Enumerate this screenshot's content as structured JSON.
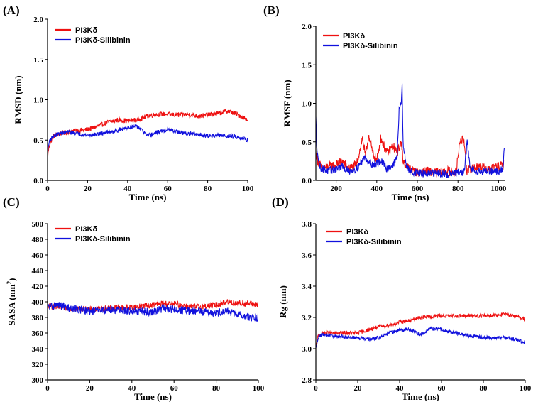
{
  "colors": {
    "red": "#ee1111",
    "blue": "#1111dd"
  },
  "chart_data": [
    {
      "id": "A",
      "panel_label": "(A)",
      "type": "line",
      "xlabel": "Time (ns)",
      "ylabel": "RMSD (nm)",
      "xlim": [
        0,
        100
      ],
      "ylim": [
        0,
        2.0
      ],
      "xticks": [
        0,
        20,
        40,
        60,
        80,
        100
      ],
      "xtick_labels": [
        "0",
        "20",
        "40",
        "60",
        "80",
        "100"
      ],
      "yticks": [
        0,
        0.5,
        1.0,
        1.5,
        2.0
      ],
      "ytick_labels": [
        "0.0",
        "0.5",
        "1.0",
        "1.5",
        "2.0"
      ],
      "legend": [
        "PI3Kδ",
        "PI3Kδ-Silibinin"
      ],
      "series": [
        {
          "name": "PI3Kδ",
          "color": "#ee1111",
          "noise": 0.03,
          "x": [
            0,
            1,
            3,
            6,
            10,
            15,
            20,
            25,
            30,
            35,
            40,
            45,
            50,
            55,
            60,
            65,
            70,
            75,
            80,
            85,
            90,
            95,
            100
          ],
          "values": [
            0.3,
            0.45,
            0.55,
            0.58,
            0.6,
            0.62,
            0.63,
            0.67,
            0.72,
            0.75,
            0.74,
            0.75,
            0.8,
            0.82,
            0.82,
            0.81,
            0.82,
            0.8,
            0.81,
            0.83,
            0.86,
            0.82,
            0.75
          ]
        },
        {
          "name": "PI3Kδ-Silibinin",
          "color": "#1111dd",
          "noise": 0.025,
          "x": [
            0,
            1,
            3,
            6,
            10,
            15,
            20,
            25,
            30,
            35,
            40,
            45,
            50,
            55,
            60,
            65,
            70,
            75,
            80,
            85,
            90,
            95,
            100
          ],
          "values": [
            0.35,
            0.5,
            0.55,
            0.58,
            0.6,
            0.58,
            0.56,
            0.57,
            0.6,
            0.62,
            0.66,
            0.67,
            0.55,
            0.6,
            0.63,
            0.6,
            0.58,
            0.57,
            0.55,
            0.56,
            0.55,
            0.54,
            0.5
          ]
        }
      ]
    },
    {
      "id": "B",
      "panel_label": "(B)",
      "type": "line",
      "xlabel": "Time (ns)",
      "ylabel": "RMSF (nm)",
      "xlim": [
        100,
        1030
      ],
      "ylim": [
        0,
        2.0
      ],
      "xticks": [
        200,
        400,
        600,
        800,
        1000
      ],
      "xtick_labels": [
        "200",
        "400",
        "600",
        "800",
        "1000"
      ],
      "yticks": [
        0,
        0.5,
        1.0,
        1.5,
        2.0
      ],
      "ytick_labels": [
        "0.0",
        "0.5",
        "1.0",
        "1.5",
        "2.0"
      ],
      "legend": [
        "PI3Kδ",
        "PI3Kδ-Silibinin"
      ],
      "series": [
        {
          "name": "PI3Kδ",
          "color": "#ee1111",
          "noise": 0.06,
          "x": [
            100,
            110,
            130,
            160,
            200,
            230,
            260,
            300,
            330,
            345,
            360,
            380,
            400,
            420,
            450,
            480,
            500,
            520,
            530,
            545,
            560,
            600,
            650,
            700,
            750,
            790,
            810,
            830,
            845,
            860,
            900,
            950,
            1000,
            1025
          ],
          "values": [
            0.35,
            0.25,
            0.15,
            0.18,
            0.2,
            0.25,
            0.15,
            0.2,
            0.55,
            0.3,
            0.6,
            0.35,
            0.25,
            0.55,
            0.35,
            0.45,
            0.35,
            0.5,
            0.25,
            0.2,
            0.15,
            0.1,
            0.12,
            0.1,
            0.12,
            0.1,
            0.52,
            0.52,
            0.1,
            0.15,
            0.18,
            0.15,
            0.18,
            0.2
          ]
        },
        {
          "name": "PI3Kδ-Silibinin",
          "color": "#1111dd",
          "noise": 0.05,
          "x": [
            100,
            105,
            115,
            130,
            160,
            200,
            230,
            260,
            300,
            340,
            380,
            420,
            450,
            480,
            500,
            510,
            520,
            525,
            530,
            545,
            560,
            600,
            650,
            700,
            750,
            800,
            830,
            845,
            860,
            900,
            950,
            1000,
            1020,
            1028
          ],
          "values": [
            0.8,
            0.45,
            0.2,
            0.15,
            0.12,
            0.15,
            0.18,
            0.12,
            0.15,
            0.3,
            0.2,
            0.25,
            0.15,
            0.2,
            0.3,
            0.9,
            1.0,
            1.22,
            0.45,
            0.2,
            0.12,
            0.1,
            0.08,
            0.1,
            0.08,
            0.1,
            0.1,
            0.5,
            0.15,
            0.12,
            0.12,
            0.12,
            0.15,
            0.38
          ]
        }
      ]
    },
    {
      "id": "C",
      "panel_label": "(C)",
      "type": "line",
      "xlabel": "Time (ns)",
      "ylabel": "SASA (nm²)",
      "xlim": [
        0,
        100
      ],
      "ylim": [
        300,
        500
      ],
      "xticks": [
        0,
        20,
        40,
        60,
        80,
        100
      ],
      "xtick_labels": [
        "0",
        "20",
        "40",
        "60",
        "80",
        "100"
      ],
      "yticks": [
        300,
        320,
        340,
        360,
        380,
        400,
        420,
        440,
        460,
        480,
        500
      ],
      "ytick_labels": [
        "300",
        "320",
        "340",
        "360",
        "380",
        "400",
        "420",
        "440",
        "460",
        "480",
        "500"
      ],
      "legend": [
        "PI3Kδ",
        "PI3Kδ-Silibinin"
      ],
      "series": [
        {
          "name": "PI3Kδ",
          "color": "#ee1111",
          "noise": 4,
          "x": [
            0,
            5,
            10,
            20,
            30,
            40,
            50,
            55,
            60,
            70,
            80,
            85,
            90,
            95,
            100
          ],
          "values": [
            395,
            393,
            392,
            390,
            392,
            393,
            396,
            398,
            397,
            393,
            396,
            400,
            398,
            398,
            396
          ]
        },
        {
          "name": "PI3Kδ-Silibinin",
          "color": "#1111dd",
          "noise": 5,
          "x": [
            0,
            5,
            10,
            20,
            30,
            40,
            50,
            55,
            60,
            70,
            80,
            85,
            90,
            95,
            100
          ],
          "values": [
            393,
            396,
            392,
            388,
            390,
            388,
            387,
            392,
            390,
            388,
            386,
            388,
            384,
            380,
            380
          ]
        }
      ]
    },
    {
      "id": "D",
      "panel_label": "(D)",
      "type": "line",
      "xlabel": "Time (ns)",
      "ylabel": "Rg (nm)",
      "xlim": [
        0,
        100
      ],
      "ylim": [
        2.8,
        3.8
      ],
      "xticks": [
        0,
        20,
        40,
        60,
        80,
        100
      ],
      "xtick_labels": [
        "0",
        "20",
        "40",
        "60",
        "80",
        "100"
      ],
      "yticks": [
        2.8,
        3.0,
        3.2,
        3.4,
        3.6,
        3.8
      ],
      "ytick_labels": [
        "2.8",
        "3.0",
        "3.2",
        "3.4",
        "3.6",
        "3.8"
      ],
      "legend": [
        "PI3Kδ",
        "PI3Kδ-Silibinin"
      ],
      "series": [
        {
          "name": "PI3Kδ",
          "color": "#ee1111",
          "noise": 0.012,
          "x": [
            0,
            1,
            3,
            10,
            20,
            25,
            30,
            35,
            40,
            45,
            50,
            60,
            70,
            80,
            90,
            95,
            100
          ],
          "values": [
            3.0,
            3.08,
            3.1,
            3.1,
            3.1,
            3.12,
            3.14,
            3.15,
            3.17,
            3.18,
            3.2,
            3.21,
            3.21,
            3.21,
            3.22,
            3.21,
            3.19
          ]
        },
        {
          "name": "PI3Kδ-Silibinin",
          "color": "#1111dd",
          "noise": 0.012,
          "x": [
            0,
            1,
            3,
            10,
            20,
            25,
            30,
            35,
            40,
            45,
            50,
            55,
            60,
            70,
            80,
            90,
            95,
            100
          ],
          "values": [
            3.0,
            3.07,
            3.09,
            3.08,
            3.07,
            3.06,
            3.07,
            3.1,
            3.12,
            3.12,
            3.09,
            3.13,
            3.12,
            3.09,
            3.07,
            3.07,
            3.06,
            3.04
          ]
        }
      ]
    }
  ]
}
